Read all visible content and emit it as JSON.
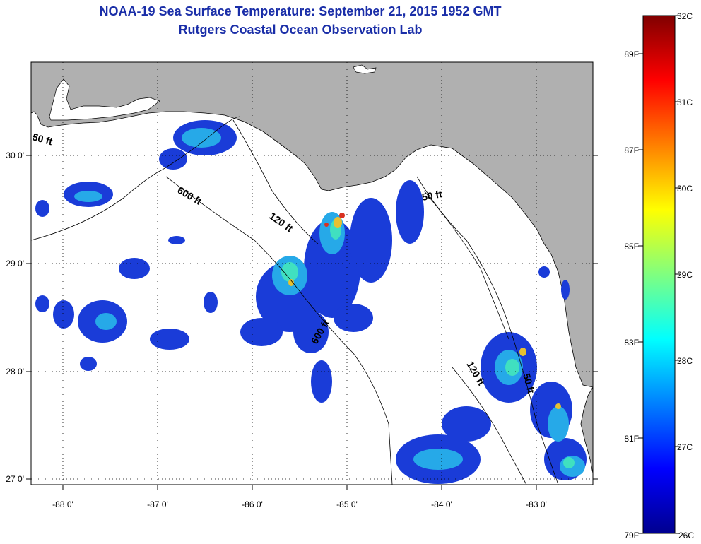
{
  "title": "NOAA-19 Sea Surface Temperature:  September 21, 2015 1952 GMT",
  "subtitle": "Rutgers Coastal Ocean Observation Lab",
  "map": {
    "lon_ticks": [
      "-88 0'",
      "-87 0'",
      "-86 0'",
      "-85 0'",
      "-84 0'",
      "-83 0'"
    ],
    "lat_ticks": [
      "30 0'",
      "29 0'",
      "28 0'",
      "27 0'"
    ],
    "contours": [
      "50 ft",
      "600 ft",
      "120 ft",
      "50 ft",
      "600 ft",
      "120 ft",
      "50 ft"
    ],
    "land_color": "#b0b0b0",
    "ocean_color": "#ffffff"
  },
  "colorbar": {
    "celsius": [
      "32C",
      "31C",
      "30C",
      "29C",
      "28C",
      "27C",
      "26C"
    ],
    "fahrenheit": [
      "89F",
      "87F",
      "85F",
      "83F",
      "81F",
      "79F"
    ]
  }
}
